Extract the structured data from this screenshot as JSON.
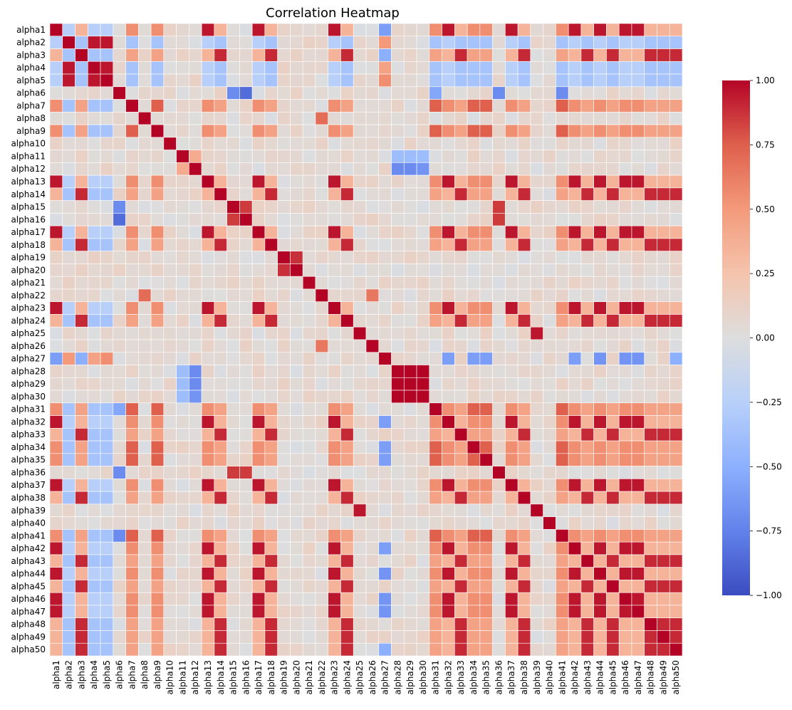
{
  "chart_data": {
    "type": "heatmap",
    "title": "Correlation Heatmap",
    "labels": [
      "alpha1",
      "alpha2",
      "alpha3",
      "alpha4",
      "alpha5",
      "alpha6",
      "alpha7",
      "alpha8",
      "alpha9",
      "alpha10",
      "alpha11",
      "alpha12",
      "alpha13",
      "alpha14",
      "alpha15",
      "alpha16",
      "alpha17",
      "alpha18",
      "alpha19",
      "alpha20",
      "alpha21",
      "alpha22",
      "alpha23",
      "alpha24",
      "alpha25",
      "alpha26",
      "alpha27",
      "alpha28",
      "alpha29",
      "alpha30",
      "alpha31",
      "alpha32",
      "alpha33",
      "alpha34",
      "alpha35",
      "alpha36",
      "alpha37",
      "alpha38",
      "alpha39",
      "alpha40",
      "alpha41",
      "alpha42",
      "alpha43",
      "alpha44",
      "alpha45",
      "alpha46",
      "alpha47",
      "alpha48",
      "alpha49",
      "alpha50"
    ],
    "value_range": [
      -1,
      1
    ],
    "colormap": "coolwarm",
    "colorbar": {
      "ticks": [
        -1.0,
        -0.75,
        -0.5,
        -0.25,
        0.0,
        0.25,
        0.5,
        0.75,
        1.0
      ],
      "tick_labels": [
        "−1.00",
        "−0.75",
        "−0.50",
        "−0.25",
        "0.00",
        "0.25",
        "0.50",
        "0.75",
        "1.00"
      ]
    },
    "correlation_groups": {
      "A": {
        "members": [
          "alpha1",
          "alpha13",
          "alpha17",
          "alpha23",
          "alpha32",
          "alpha37",
          "alpha42",
          "alpha44",
          "alpha46",
          "alpha47"
        ],
        "within": 0.95
      },
      "B": {
        "members": [
          "alpha3",
          "alpha14",
          "alpha18",
          "alpha24",
          "alpha33",
          "alpha38",
          "alpha43",
          "alpha45",
          "alpha48",
          "alpha49",
          "alpha50"
        ],
        "within": 0.9
      },
      "C": {
        "members": [
          "alpha7",
          "alpha9",
          "alpha31",
          "alpha34",
          "alpha35",
          "alpha41"
        ],
        "within": 0.75
      },
      "D": {
        "members": [
          "alpha15",
          "alpha16",
          "alpha36"
        ],
        "within": 0.85
      },
      "E": {
        "members": [
          "alpha28",
          "alpha29",
          "alpha30"
        ],
        "within": 1.0
      },
      "F": {
        "members": [
          "alpha2",
          "alpha4",
          "alpha5"
        ],
        "within": 0.95
      }
    },
    "group_links": [
      {
        "a": "A",
        "b": "B",
        "value": 0.35
      },
      {
        "a": "A",
        "b": "C",
        "value": 0.55
      },
      {
        "a": "B",
        "b": "C",
        "value": 0.45
      },
      {
        "a": "A",
        "b": "F",
        "value": -0.25
      },
      {
        "a": "B",
        "b": "F",
        "value": -0.35
      },
      {
        "a": "C",
        "b": "F",
        "value": -0.35
      }
    ],
    "pair_overrides": [
      {
        "a": "alpha19",
        "b": "alpha20",
        "value": 0.88
      },
      {
        "a": "alpha25",
        "b": "alpha39",
        "value": 0.95
      },
      {
        "a": "alpha8",
        "b": "alpha22",
        "value": 0.7
      },
      {
        "a": "alpha22",
        "b": "alpha26",
        "value": 0.65
      },
      {
        "a": "alpha11",
        "b": "alpha12",
        "value": 0.4
      },
      {
        "a": "alpha6",
        "b": "alpha15",
        "value": -0.7
      },
      {
        "a": "alpha6",
        "b": "alpha16",
        "value": -0.85
      },
      {
        "a": "alpha6",
        "b": "alpha36",
        "value": -0.7
      },
      {
        "a": "alpha6",
        "b": "alpha41",
        "value": -0.7
      },
      {
        "a": "alpha6",
        "b": "alpha31",
        "value": -0.55
      },
      {
        "a": "alpha12",
        "b": "alpha28",
        "value": -0.7
      },
      {
        "a": "alpha12",
        "b": "alpha29",
        "value": -0.7
      },
      {
        "a": "alpha12",
        "b": "alpha30",
        "value": -0.65
      },
      {
        "a": "alpha11",
        "b": "alpha28",
        "value": -0.4
      },
      {
        "a": "alpha11",
        "b": "alpha29",
        "value": -0.4
      },
      {
        "a": "alpha11",
        "b": "alpha30",
        "value": -0.4
      },
      {
        "a": "alpha27",
        "b": "alpha2",
        "value": 0.5
      },
      {
        "a": "alpha27",
        "b": "alpha4",
        "value": 0.45
      },
      {
        "a": "alpha27",
        "b": "alpha5",
        "value": 0.55
      },
      {
        "a": "alpha27",
        "b": "alpha1",
        "value": -0.6
      },
      {
        "a": "alpha27",
        "b": "alpha44",
        "value": -0.65
      },
      {
        "a": "alpha27",
        "b": "alpha46",
        "value": -0.65
      },
      {
        "a": "alpha27",
        "b": "alpha47",
        "value": -0.65
      },
      {
        "a": "alpha27",
        "b": "alpha42",
        "value": -0.6
      },
      {
        "a": "alpha27",
        "b": "alpha32",
        "value": -0.6
      },
      {
        "a": "alpha27",
        "b": "alpha34",
        "value": -0.6
      },
      {
        "a": "alpha27",
        "b": "alpha35",
        "value": -0.6
      },
      {
        "a": "alpha27",
        "b": "alpha50",
        "value": -0.5
      },
      {
        "a": "alpha27",
        "b": "alpha3",
        "value": -0.5
      }
    ]
  }
}
